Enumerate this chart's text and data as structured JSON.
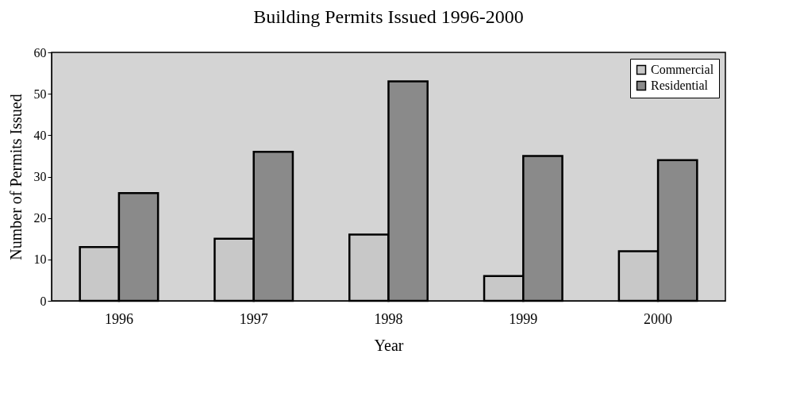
{
  "chart_data": {
    "type": "bar",
    "title": "Building Permits Issued 1996-2000",
    "xlabel": "Year",
    "ylabel": "Number of Permits Issued",
    "categories": [
      "1996",
      "1997",
      "1998",
      "1999",
      "2000"
    ],
    "series": [
      {
        "name": "Commercial",
        "color": "#c8c8c8",
        "values": [
          13,
          15,
          16,
          6,
          12
        ]
      },
      {
        "name": "Residential",
        "color": "#8a8a8a",
        "values": [
          26,
          36,
          53,
          35,
          34
        ]
      }
    ],
    "ylim": [
      0,
      60
    ],
    "yticks": [
      0,
      10,
      20,
      30,
      40,
      50,
      60
    ],
    "grid": false,
    "legend": "top right"
  }
}
